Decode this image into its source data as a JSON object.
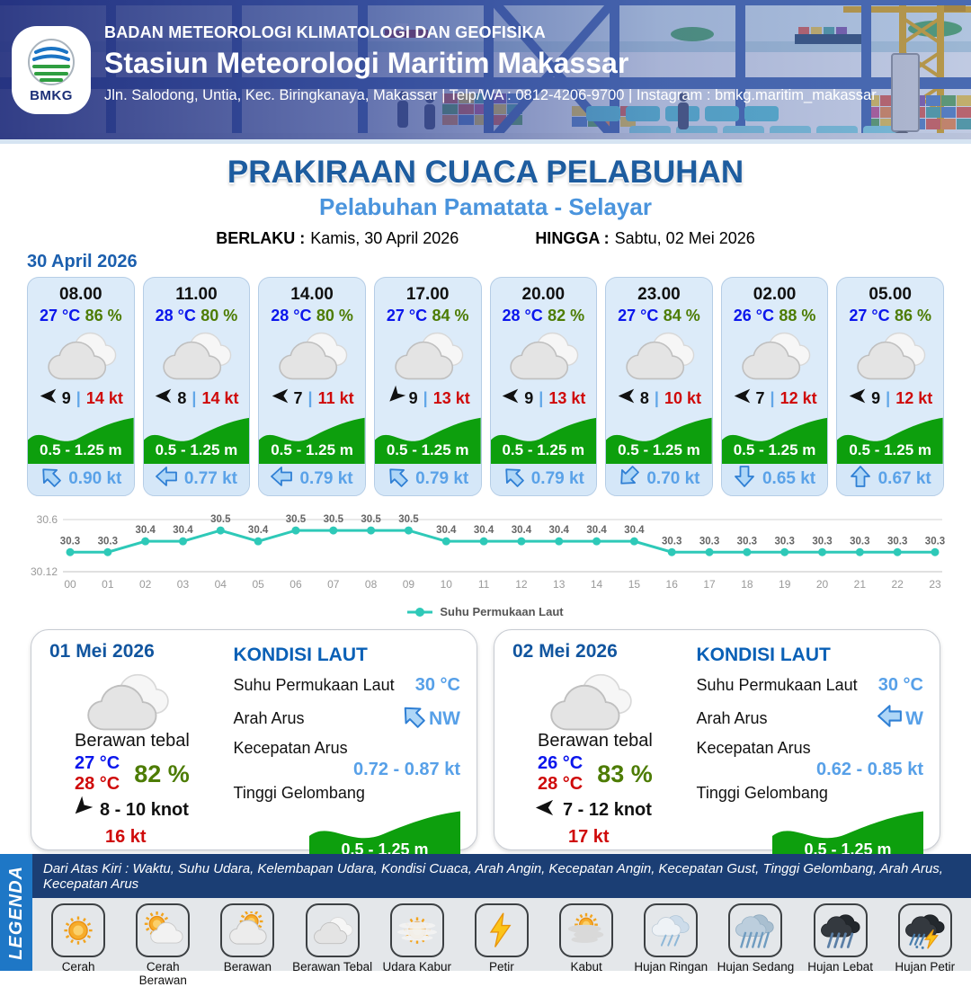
{
  "header": {
    "logo_text": "BMKG",
    "agency": "BADAN METEOROLOGI KLIMATOLOGI DAN GEOFISIKA",
    "station": "Stasiun Meteorologi Maritim Makassar",
    "contact": "Jln. Salodong, Untia, Kec. Biringkanaya, Makassar | Telp/WA : 0812-4206-9700 | Instagram : bmkg.maritim_makassar"
  },
  "title": {
    "main": "PRAKIRAAN CUACA PELABUHAN",
    "port": "Pelabuhan Pamatata - Selayar",
    "valid_from_label": "BERLAKU :",
    "valid_from": "Kamis, 30 April 2026",
    "valid_to_label": "HINGGA :",
    "valid_to": "Sabtu, 02 Mei 2026"
  },
  "hourly": {
    "date": "30 April 2026",
    "gust_separator": "|",
    "condition": "Berawan Tebal",
    "cards": [
      {
        "time": "08.00",
        "temp": "27 °C",
        "humidity": "86 %",
        "wind_dir": "W",
        "wind_speed": "9",
        "gust": "14 kt",
        "wave_height": "0.5 - 1.25 m",
        "current_dir": "NW",
        "current_speed": "0.90 kt"
      },
      {
        "time": "11.00",
        "temp": "28 °C",
        "humidity": "80 %",
        "wind_dir": "W",
        "wind_speed": "8",
        "gust": "14 kt",
        "wave_height": "0.5 - 1.25 m",
        "current_dir": "W",
        "current_speed": "0.77 kt"
      },
      {
        "time": "14.00",
        "temp": "28 °C",
        "humidity": "80 %",
        "wind_dir": "W",
        "wind_speed": "7",
        "gust": "11 kt",
        "wave_height": "0.5 - 1.25 m",
        "current_dir": "W",
        "current_speed": "0.79 kt"
      },
      {
        "time": "17.00",
        "temp": "27 °C",
        "humidity": "84 %",
        "wind_dir": "SW",
        "wind_speed": "9",
        "gust": "13 kt",
        "wave_height": "0.5 - 1.25 m",
        "current_dir": "NW",
        "current_speed": "0.79 kt"
      },
      {
        "time": "20.00",
        "temp": "28 °C",
        "humidity": "82 %",
        "wind_dir": "W",
        "wind_speed": "9",
        "gust": "13 kt",
        "wave_height": "0.5 - 1.25 m",
        "current_dir": "NW",
        "current_speed": "0.79 kt"
      },
      {
        "time": "23.00",
        "temp": "27 °C",
        "humidity": "84 %",
        "wind_dir": "W",
        "wind_speed": "8",
        "gust": "10 kt",
        "wave_height": "0.5 - 1.25 m",
        "current_dir": "SW",
        "current_speed": "0.70 kt"
      },
      {
        "time": "02.00",
        "temp": "26 °C",
        "humidity": "88 %",
        "wind_dir": "W",
        "wind_speed": "7",
        "gust": "12 kt",
        "wave_height": "0.5 - 1.25 m",
        "current_dir": "S",
        "current_speed": "0.65 kt"
      },
      {
        "time": "05.00",
        "temp": "27 °C",
        "humidity": "86 %",
        "wind_dir": "W",
        "wind_speed": "9",
        "gust": "12 kt",
        "wave_height": "0.5 - 1.25 m",
        "current_dir": "N",
        "current_speed": "0.67 kt"
      }
    ]
  },
  "chart_data": {
    "type": "line",
    "series_name": "Suhu Permukaan Laut",
    "x": [
      "00",
      "01",
      "02",
      "03",
      "04",
      "05",
      "06",
      "07",
      "08",
      "09",
      "10",
      "11",
      "12",
      "13",
      "14",
      "15",
      "16",
      "17",
      "18",
      "19",
      "20",
      "21",
      "22",
      "23"
    ],
    "values": [
      30.3,
      30.3,
      30.4,
      30.4,
      30.5,
      30.4,
      30.5,
      30.5,
      30.5,
      30.5,
      30.4,
      30.4,
      30.4,
      30.4,
      30.4,
      30.4,
      30.3,
      30.3,
      30.3,
      30.3,
      30.3,
      30.3,
      30.3,
      30.3
    ],
    "y_axis_ticks": [
      "30.6",
      "30.12"
    ],
    "ylim": [
      30.12,
      30.6
    ],
    "grid": "top-and-bottom-lines",
    "legend_position": "bottom-center",
    "line_color": "#2ec9b8"
  },
  "daily": {
    "labels": {
      "sea_title": "KONDISI LAUT",
      "sst": "Suhu Permukaan Laut",
      "current_dir": "Arah Arus",
      "current_speed": "Kecepatan Arus",
      "wave": "Tinggi Gelombang"
    },
    "cards": [
      {
        "date": "01 Mei 2026",
        "condition": "Berawan tebal",
        "temp_min": "27 °C",
        "temp_max": "28 °C",
        "humidity": "82 %",
        "wind_dir": "SW",
        "wind_range": "8  - 10 knot",
        "gust": "16 kt",
        "sea": {
          "sst": "30 °C",
          "current_dir": "NW",
          "current_speed": "0.72  - 0.87 kt",
          "wave": "0.5 - 1.25 m"
        }
      },
      {
        "date": "02 Mei 2026",
        "condition": "Berawan tebal",
        "temp_min": "26 °C",
        "temp_max": "28 °C",
        "humidity": "83 %",
        "wind_dir": "W",
        "wind_range": "7  - 12 knot",
        "gust": "17 kt",
        "sea": {
          "sst": "30 °C",
          "current_dir": "W",
          "current_speed": "0.62  - 0.85 kt",
          "wave": "0.5 - 1.25 m"
        }
      }
    ]
  },
  "legend": {
    "title": "LEGENDA",
    "description": "Dari Atas Kiri : Waktu, Suhu Udara, Kelembapan Udara, Kondisi Cuaca, Arah Angin, Kecepatan Angin, Kecepatan Gust, Tinggi Gelombang, Arah Arus, Kecepatan Arus",
    "items": [
      {
        "label": "Cerah",
        "icon": "cerah"
      },
      {
        "label": "Cerah Berawan",
        "icon": "cerah-berawan"
      },
      {
        "label": "Berawan",
        "icon": "berawan"
      },
      {
        "label": "Berawan Tebal",
        "icon": "berawan-tebal"
      },
      {
        "label": "Udara Kabur",
        "icon": "udara-kabur"
      },
      {
        "label": "Petir",
        "icon": "petir"
      },
      {
        "label": "Kabut",
        "icon": "kabut"
      },
      {
        "label": "Hujan Ringan",
        "icon": "hujan-ringan"
      },
      {
        "label": "Hujan Sedang",
        "icon": "hujan-sedang"
      },
      {
        "label": "Hujan Lebat",
        "icon": "hujan-lebat"
      },
      {
        "label": "Hujan Petir",
        "icon": "hujan-petir"
      }
    ]
  },
  "colors": {
    "temp_blue": "#0b16ec",
    "humidity_green": "#4d7c04",
    "gust_red": "#cf0a0a",
    "wave_green": "#0d9f0d",
    "current_blue": "#5aa2e8",
    "title_blue": "#1d5c9f",
    "port_blue": "#4a94dd",
    "chart_teal": "#2ec9b8",
    "legend_bar_blue": "#1e77c6",
    "legend_strip_navy": "#1b3e74",
    "card_bg": "#dcebf9"
  }
}
